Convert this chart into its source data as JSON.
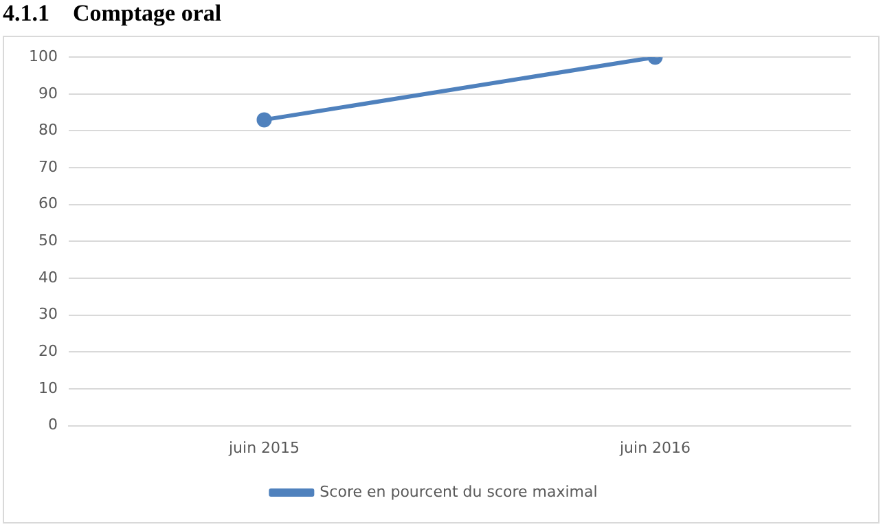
{
  "chart_data": {
    "type": "line",
    "title": "4.1.1    Comptage oral",
    "categories": [
      "juin 2015",
      "juin 2016"
    ],
    "series": [
      {
        "name": "Score en pourcent du score maximal",
        "color": "#4f81bd",
        "values": [
          83,
          100
        ]
      }
    ],
    "ylim": [
      0,
      100
    ],
    "yticks": [
      0,
      10,
      20,
      30,
      40,
      50,
      60,
      70,
      80,
      90,
      100
    ],
    "grid": "y",
    "legend": "bottom",
    "marker": "circle",
    "line_style": "solid"
  }
}
